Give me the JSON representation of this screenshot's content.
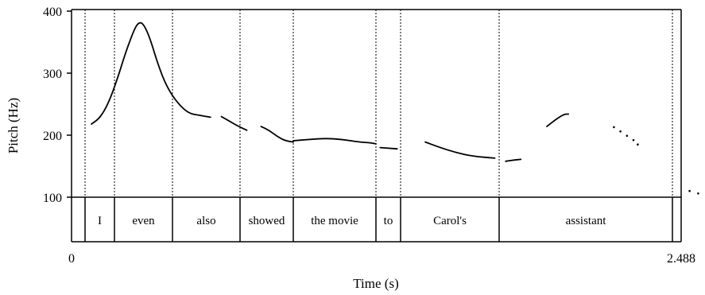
{
  "chart_data": {
    "type": "line",
    "xlabel": "Time (s)",
    "ylabel": "Pitch (Hz)",
    "xlim": [
      0,
      2.488
    ],
    "ylim": [
      100,
      400
    ],
    "x_tick_labels": [
      {
        "value": 0,
        "label": "0"
      },
      {
        "value": 2.488,
        "label": "2.488"
      }
    ],
    "y_ticks": [
      100,
      200,
      300,
      400
    ],
    "word_boundaries": [
      0.07,
      0.207,
      0.475,
      0.786,
      1.05,
      1.43,
      1.546,
      2.0,
      2.8
    ],
    "words": [
      {
        "label": "I",
        "start": 0.07,
        "end": 0.207
      },
      {
        "label": "even",
        "start": 0.207,
        "end": 0.475
      },
      {
        "label": "also",
        "start": 0.475,
        "end": 0.786
      },
      {
        "label": "showed",
        "start": 0.786,
        "end": 1.05
      },
      {
        "label": "the movie",
        "start": 1.05,
        "end": 1.43
      },
      {
        "label": "to",
        "start": 1.43,
        "end": 1.546
      },
      {
        "label": "Carol's",
        "start": 1.546,
        "end": 2.0
      },
      {
        "label": "assistant",
        "start": 2.0,
        "end": 2.8
      }
    ],
    "pitch_segments": [
      {
        "points": [
          [
            0.1,
            218
          ],
          [
            0.14,
            228
          ],
          [
            0.18,
            252
          ],
          [
            0.22,
            290
          ],
          [
            0.26,
            335
          ],
          [
            0.3,
            372
          ],
          [
            0.32,
            382
          ],
          [
            0.34,
            380
          ],
          [
            0.37,
            358
          ],
          [
            0.41,
            312
          ],
          [
            0.45,
            277
          ],
          [
            0.5,
            251
          ],
          [
            0.55,
            235
          ],
          [
            0.6,
            232
          ],
          [
            0.65,
            229
          ]
        ]
      },
      {
        "points": [
          [
            0.7,
            230
          ],
          [
            0.74,
            222
          ],
          [
            0.78,
            214
          ],
          [
            0.82,
            208
          ]
        ]
      },
      {
        "points": [
          [
            0.89,
            214
          ],
          [
            0.93,
            208
          ],
          [
            0.97,
            198
          ],
          [
            1.01,
            191
          ],
          [
            1.05,
            189
          ]
        ]
      },
      {
        "points": [
          [
            1.05,
            191
          ],
          [
            1.12,
            193
          ],
          [
            1.2,
            195
          ],
          [
            1.28,
            193
          ],
          [
            1.35,
            189
          ],
          [
            1.4,
            188
          ],
          [
            1.43,
            186
          ]
        ]
      },
      {
        "points": [
          [
            1.45,
            180
          ],
          [
            1.49,
            179
          ],
          [
            1.53,
            178
          ]
        ]
      },
      {
        "points": [
          [
            1.66,
            189
          ],
          [
            1.72,
            181
          ],
          [
            1.8,
            172
          ],
          [
            1.88,
            166
          ],
          [
            1.98,
            163
          ]
        ]
      },
      {
        "points": [
          [
            2.03,
            158
          ],
          [
            2.07,
            160
          ],
          [
            2.1,
            161
          ]
        ]
      },
      {
        "points": [
          [
            2.22,
            214
          ],
          [
            2.26,
            225
          ],
          [
            2.3,
            234
          ],
          [
            2.32,
            234
          ]
        ]
      },
      {
        "dotted": true,
        "points": [
          [
            2.53,
            213
          ],
          [
            2.56,
            206
          ],
          [
            2.59,
            199
          ],
          [
            2.62,
            192
          ],
          [
            2.64,
            185
          ]
        ]
      },
      {
        "dotted": true,
        "points": [
          [
            2.88,
            110
          ],
          [
            2.92,
            106
          ]
        ]
      }
    ]
  }
}
